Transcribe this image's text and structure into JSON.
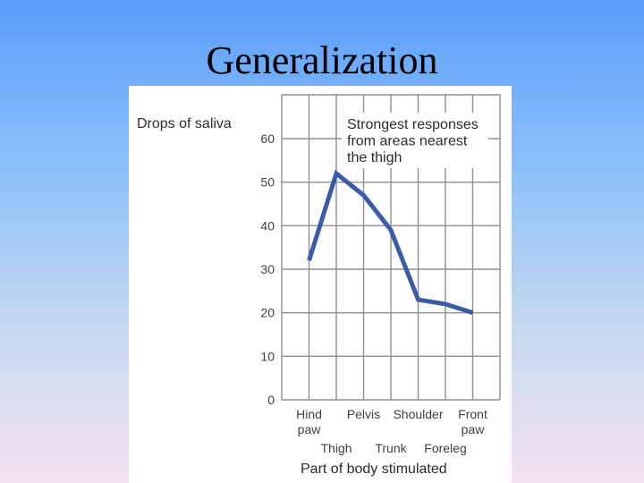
{
  "slide": {
    "title": "Generalization"
  },
  "chart_data": {
    "type": "line",
    "ylabel": "Drops of saliva",
    "xlabel": "Part of body stimulated",
    "ylim": [
      0,
      60
    ],
    "yticks": [
      0,
      10,
      20,
      30,
      40,
      50,
      60
    ],
    "categories": [
      "Hind paw",
      "Thigh",
      "Pelvis",
      "Trunk",
      "Shoulder",
      "Foreleg",
      "Front paw"
    ],
    "category_labels": [
      {
        "lines": [
          "Hind",
          "paw"
        ],
        "row": "top"
      },
      {
        "lines": [
          "Thigh"
        ],
        "row": "bottom"
      },
      {
        "lines": [
          "Pelvis"
        ],
        "row": "top"
      },
      {
        "lines": [
          "Trunk"
        ],
        "row": "bottom"
      },
      {
        "lines": [
          "Shoulder"
        ],
        "row": "top"
      },
      {
        "lines": [
          "Foreleg"
        ],
        "row": "bottom"
      },
      {
        "lines": [
          "Front",
          "paw"
        ],
        "row": "top"
      }
    ],
    "series": [
      {
        "values": [
          32,
          52,
          47,
          39,
          23,
          22,
          20
        ]
      }
    ],
    "annotation": [
      "Strongest responses",
      "from areas nearest",
      "the thigh"
    ],
    "grid": true,
    "colors": {
      "line": "#3a5ba8",
      "grid": "#8f8f8f",
      "text": "#3f3f3f"
    }
  }
}
